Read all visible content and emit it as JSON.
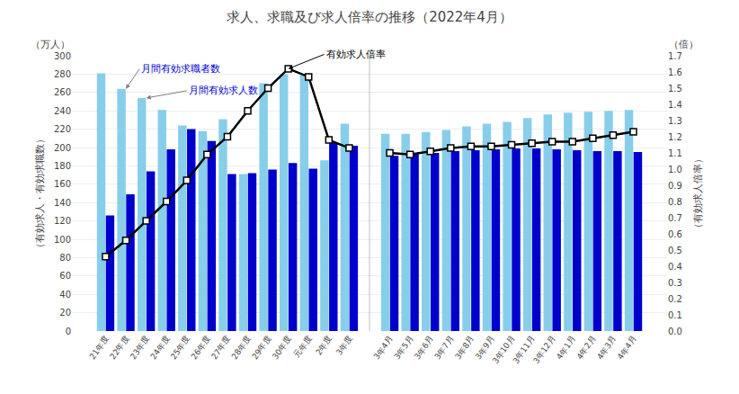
{
  "chart_data": {
    "type": "bar",
    "title": "求人、求職及び求人倍率の推移（2022年4月）",
    "ylabel": "（有効求人・有効求職数）",
    "y2label": "（有効求人倍率）",
    "yunit": "（万人）",
    "y2unit": "（倍）",
    "categories": [
      "21年度",
      "22年度",
      "23年度",
      "24年度",
      "25年度",
      "26年度",
      "27年度",
      "28年度",
      "29年度",
      "30年度",
      "元年度",
      "2年度",
      "3年度",
      null,
      "3年4月",
      "3年5月",
      "3年6月",
      "3年7月",
      "3年8月",
      "3年9月",
      "3年10月",
      "3年11月",
      "3年12月",
      "4年1月",
      "4年2月",
      "4年3月",
      "4年4月"
    ],
    "series": [
      {
        "type": "bar",
        "color": "#87CEEB",
        "values": [
          281,
          264,
          254,
          241,
          224,
          218,
          231,
          171,
          270,
          280,
          279,
          186,
          226,
          null,
          215,
          215,
          217,
          219,
          223,
          226,
          228,
          232,
          236,
          238,
          239,
          240,
          241
        ]
      },
      {
        "type": "bar",
        "color": "#0000CD",
        "values": [
          126,
          149,
          174,
          198,
          220,
          207,
          171,
          172,
          176,
          183,
          177,
          205,
          202,
          null,
          191,
          193,
          194,
          196,
          197,
          198,
          199,
          199,
          198,
          197,
          196,
          196,
          195
        ]
      },
      {
        "type": "line",
        "axis": "y2",
        "color": "#000000",
        "marker": "square",
        "values": [
          0.46,
          0.56,
          0.68,
          0.8,
          0.93,
          1.09,
          1.2,
          1.36,
          1.5,
          1.62,
          1.57,
          1.18,
          1.13,
          null,
          1.1,
          1.09,
          1.11,
          1.13,
          1.14,
          1.14,
          1.15,
          1.16,
          1.17,
          1.17,
          1.19,
          1.21,
          1.23
        ]
      }
    ],
    "annotations": [
      {
        "text": "月間有効求職者数",
        "color": "#0000CD",
        "series": 0,
        "category": "22年度"
      },
      {
        "text": "月間有効求人数",
        "color": "#0000CD",
        "series": 0,
        "category": "23年度"
      },
      {
        "text": "有効求人倍率",
        "color": "#000000",
        "series": 2,
        "category": "30年度"
      }
    ],
    "ylim": [
      0,
      300
    ],
    "yticks": [
      0,
      20,
      40,
      60,
      80,
      100,
      120,
      140,
      160,
      180,
      200,
      220,
      240,
      260,
      280,
      300
    ],
    "y2lim": [
      0.0,
      1.7
    ],
    "y2ticks": [
      {
        "value": 0,
        "label": "0.0"
      },
      0.1,
      0.2,
      0.3,
      0.4,
      0.5,
      0.6,
      0.7,
      0.8,
      0.9,
      {
        "value": 1,
        "label": "1.0"
      },
      1.1,
      1.2,
      1.3,
      1.4,
      1.5,
      1.6,
      1.7
    ],
    "grid": true
  }
}
